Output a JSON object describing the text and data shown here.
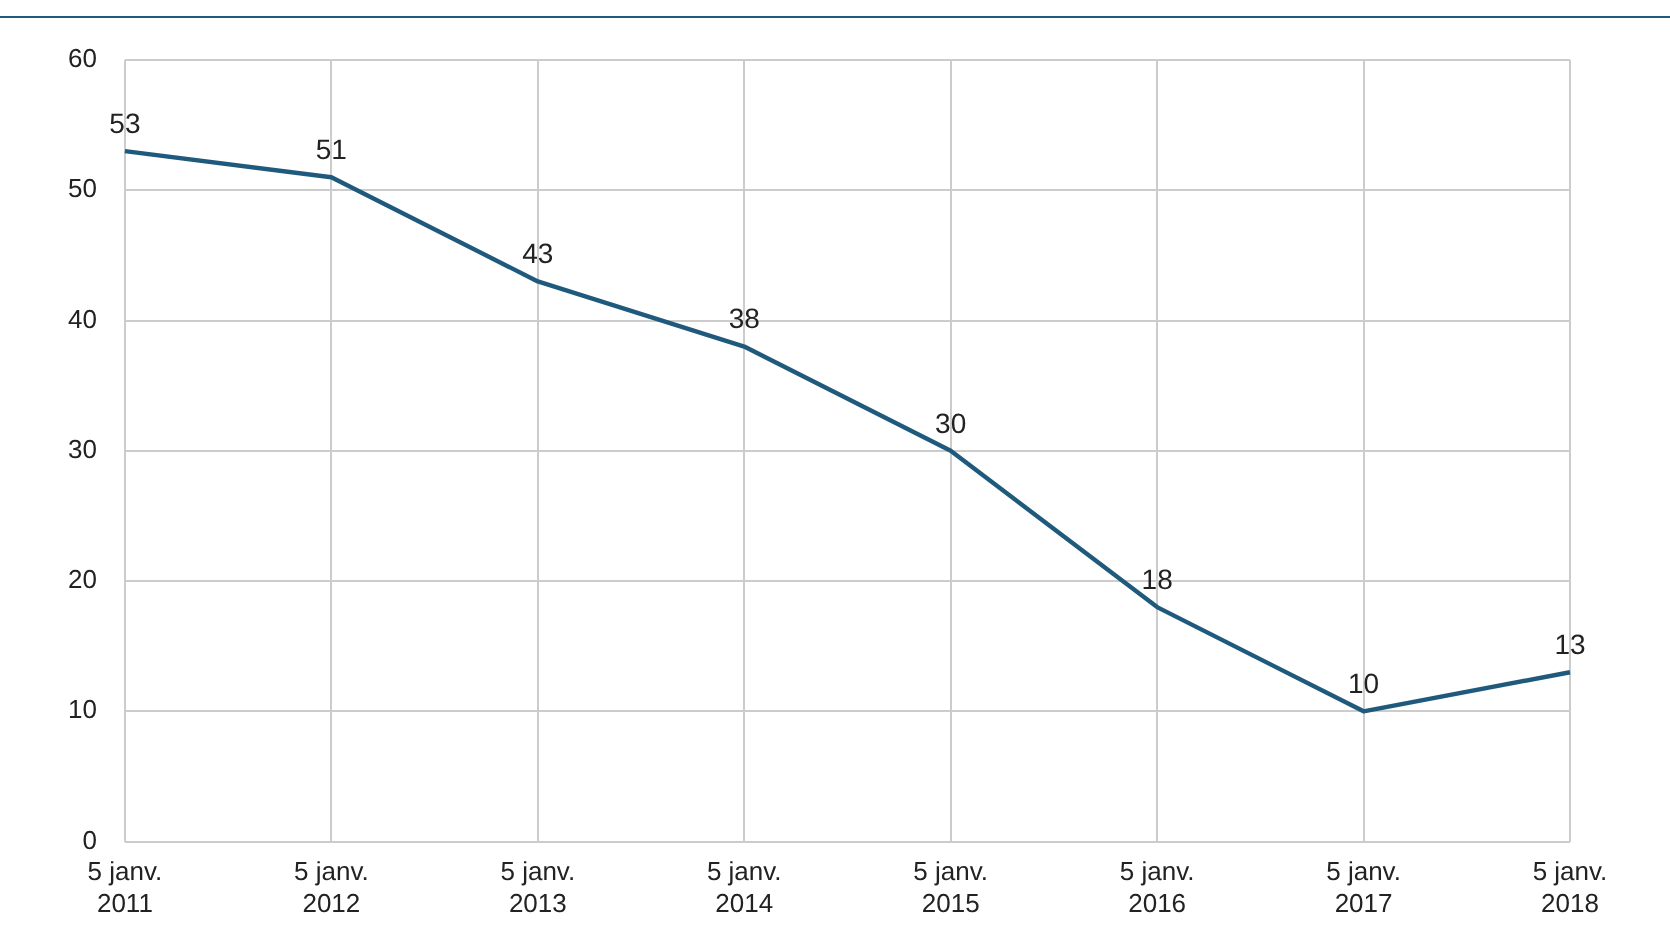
{
  "chart_data": {
    "type": "line",
    "categories": [
      "5 janv. 2011",
      "5 janv. 2012",
      "5 janv. 2013",
      "5 janv. 2014",
      "5 janv. 2015",
      "5 janv. 2016",
      "5 janv. 2017",
      "5 janv. 2018"
    ],
    "series": [
      {
        "color": "#1f5a7d",
        "values": [
          53,
          51,
          43,
          38,
          30,
          18,
          10,
          13
        ]
      }
    ],
    "ylim": [
      0,
      60
    ],
    "yticks": [
      0,
      10,
      20,
      30,
      40,
      50,
      60
    ],
    "grid": true,
    "legend": false,
    "marker": "none",
    "line_style": "solid",
    "data_labels": true
  }
}
